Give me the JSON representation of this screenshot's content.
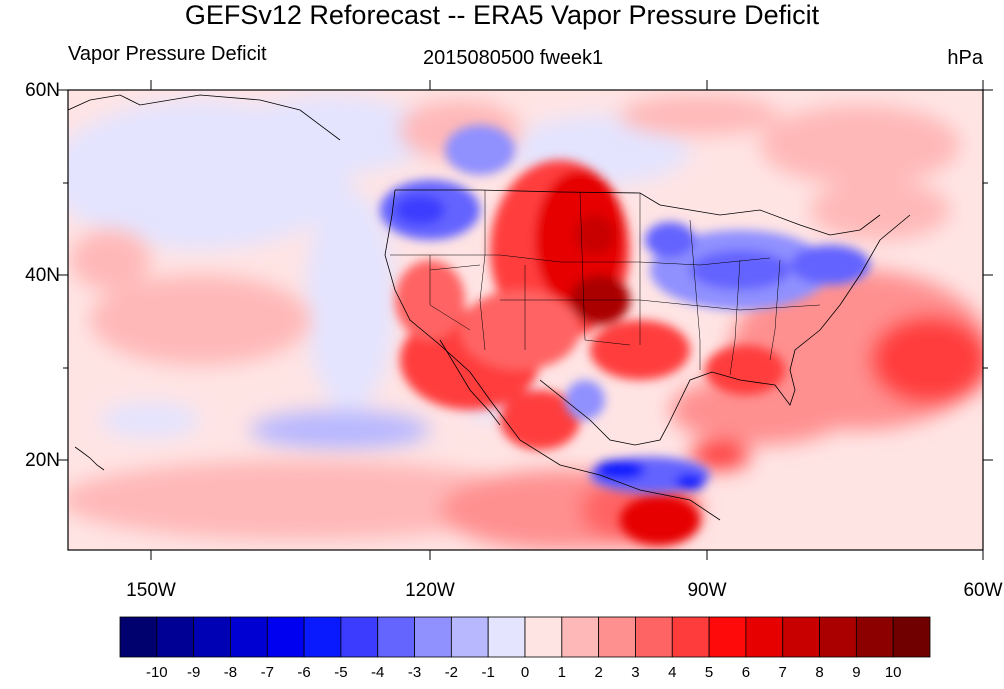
{
  "title": "GEFSv12 Reforecast -- ERA5 Vapor Pressure Deficit",
  "left_string": "Vapor Pressure Deficit",
  "center_string": "2015080500 fweek1",
  "right_string": "hPa",
  "map": {
    "projection": "cylindrical equidistant",
    "lon_range": [
      -160,
      -60
    ],
    "lat_range": [
      10,
      60
    ],
    "lat_ticks": [
      "60N",
      "40N",
      "20N"
    ],
    "lon_ticks": [
      "150W",
      "120W",
      "90W",
      "60W"
    ],
    "boundaries": "coastlines and US state borders"
  },
  "colorbar": {
    "labels": [
      "-10",
      "-9",
      "-8",
      "-7",
      "-6",
      "-5",
      "-4",
      "-3",
      "-2",
      "-1",
      "0",
      "1",
      "2",
      "3",
      "4",
      "5",
      "6",
      "7",
      "8",
      "9",
      "10"
    ],
    "colors": [
      "#00006e",
      "#000094",
      "#0000b4",
      "#0000d2",
      "#0000f0",
      "#0a1aff",
      "#3c3cff",
      "#6464ff",
      "#9090ff",
      "#b8b8ff",
      "#e4e4ff",
      "#ffe4e4",
      "#ffb8b8",
      "#ff9090",
      "#ff6464",
      "#ff3c3c",
      "#ff0a0a",
      "#e60000",
      "#c80000",
      "#aa0000",
      "#8c0000",
      "#700000"
    ]
  }
}
